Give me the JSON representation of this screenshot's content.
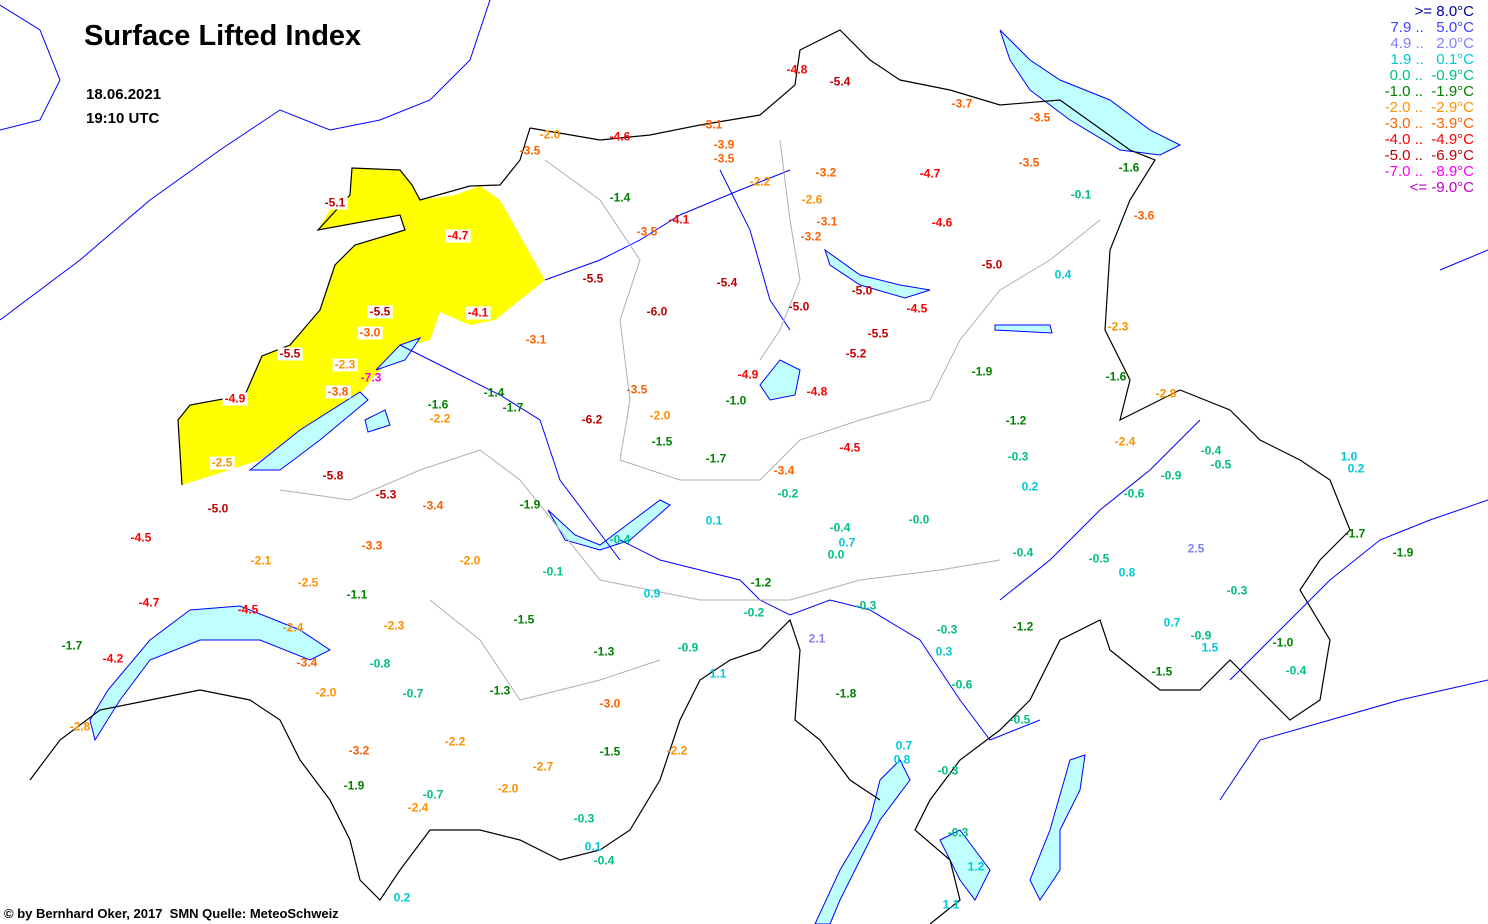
{
  "title": "Surface Lifted Index",
  "date": "18.06.2021",
  "time": "19:10 UTC",
  "footer": "© by Bernhard Oker, 2017  SMN Quelle: MeteoSchweiz",
  "colors": {
    "highlight_region": "#ffff00",
    "lake": "#c0ffff",
    "river": "#0000ff",
    "border": "#000000",
    "canton": "#b0b0b0"
  },
  "legend": [
    {
      "text": ">= 8.0°C",
      "color": "#0000a0"
    },
    {
      "text": "7.9 ..   5.0°C",
      "color": "#4040ff"
    },
    {
      "text": "4.9 ..   2.0°C",
      "color": "#8080ff"
    },
    {
      "text": "1.9 ..   0.1°C",
      "color": "#00c8d8"
    },
    {
      "text": "0.0 ..  -0.9°C",
      "color": "#00c080"
    },
    {
      "text": "-1.0 ..  -1.9°C",
      "color": "#008000"
    },
    {
      "text": "-2.0 ..  -2.9°C",
      "color": "#ff9000"
    },
    {
      "text": "-3.0 ..  -3.9°C",
      "color": "#ff6000"
    },
    {
      "text": "-4.0 ..  -4.9°C",
      "color": "#ff0000"
    },
    {
      "text": "-5.0 ..  -6.9°C",
      "color": "#c00000"
    },
    {
      "text": "-7.0 ..  -8.9°C",
      "color": "#ff00ff"
    },
    {
      "text": "<= -9.0°C",
      "color": "#c000c0"
    }
  ],
  "stations": [
    "-2.0",
    "-3.5",
    "-4.6",
    "-4.8",
    "-5.4",
    "-3.7",
    "-3.5",
    "-3.1",
    "-3.9",
    "-3.5",
    "-2.2",
    "-3.2",
    "-4.7",
    "-3.5",
    "-1.6",
    "-0.1",
    "-3.6",
    "-1.4",
    "-5.1",
    "-4.7",
    "-2.6",
    "-3.1",
    "-3.2",
    "-4.6",
    "-4.1",
    "-3.5",
    "-5.0",
    "0.4",
    "-5.5",
    "-5.4",
    "-5.0",
    "-4.5",
    "-6.0",
    "-5.0",
    "-5.5",
    "-4.1",
    "-5.5",
    "-5.2",
    "-3.0",
    "-3.1",
    "-2.3",
    "-5.5",
    "-2.3",
    "-7.3",
    "-4.9",
    "-1.9",
    "-1.6",
    "-3.5",
    "-3.8",
    "-1.4",
    "-4.8",
    "-2.8",
    "-4.9",
    "-1.6",
    "-1.7",
    "-1.0",
    "-2.2",
    "-2.0",
    "-6.2",
    "-1.2",
    "-1.5",
    "-4.5",
    "-2.4",
    "-0.4",
    "-0.5",
    "-0.3",
    "1.0",
    "0.2",
    "-1.7",
    "-2.5",
    "-3.4",
    "-0.9",
    "-5.8",
    "0.2",
    "-0.2",
    "-5.3",
    "-0.6",
    "-3.4",
    "-1.9",
    "-5.0",
    "0.1",
    "-0.0",
    "-0.4",
    "-4.5",
    "-0.4",
    "0.7",
    "-3.3",
    "2.5",
    "-1.7",
    "-0.4",
    "0.0",
    "-1.9",
    "-2.1",
    "-2.0",
    "-0.5",
    "-0.1",
    "0.8",
    "-2.5",
    "-1.2",
    "0.9",
    "-1.1",
    "-0.3",
    "-4.7",
    "-4.5",
    "-0.3",
    "-0.2",
    "-1.5",
    "-2.3",
    "-2.4",
    "-1.2",
    "0.7",
    "-0.9",
    "-0.3",
    "2.1",
    "-1.7",
    "1.5",
    "-1.0",
    "-1.3",
    "-0.9",
    "0.3",
    "-4.2",
    "-3.4",
    "-0.8",
    "1.1",
    "-1.5",
    "-0.4",
    "-0.6",
    "-2.0",
    "-0.7",
    "-1.3",
    "-1.8",
    "-3.0",
    "-0.5",
    "-2.8",
    "-2.2",
    "-3.2",
    "0.7",
    "-1.5",
    "-2.2",
    "0.8",
    "-2.7",
    "-0.3",
    "-1.9",
    "-2.0",
    "-0.7",
    "-2.4",
    "-0.3",
    "-0.3",
    "0.1",
    "-0.4",
    "1.2",
    "0.2",
    "1.1"
  ]
}
